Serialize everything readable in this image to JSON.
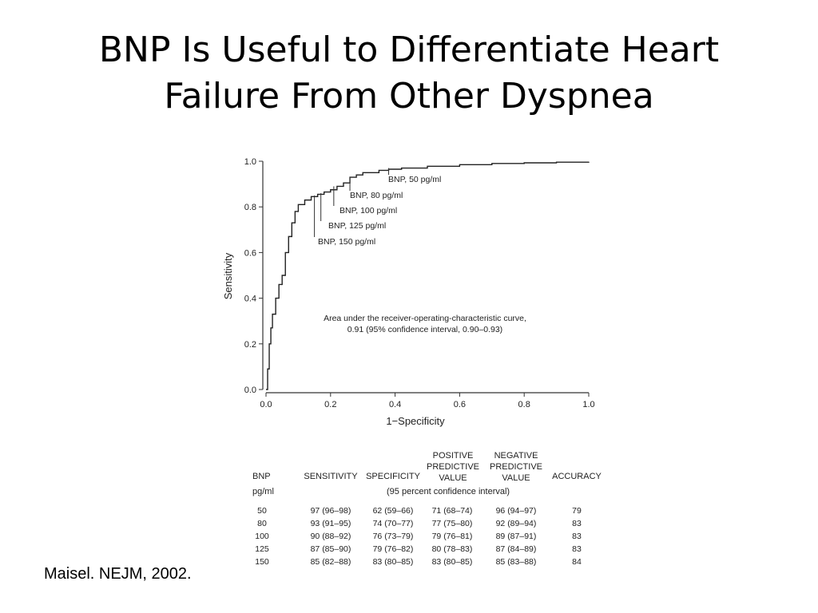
{
  "slide": {
    "title_line1": "BNP Is Useful to Differentiate Heart",
    "title_line2": "Failure From Other Dyspnea",
    "citation": "Maisel. NEJM, 2002."
  },
  "chart_data": {
    "type": "line",
    "title": "",
    "xlabel": "1−Specificity",
    "ylabel": "Sensitivity",
    "xlim": [
      0,
      1
    ],
    "ylim": [
      0,
      1
    ],
    "x_ticks": [
      "0.0",
      "0.2",
      "0.4",
      "0.6",
      "0.8",
      "1.0"
    ],
    "y_ticks": [
      "0.0",
      "0.2",
      "0.4",
      "0.6",
      "0.8",
      "1.0"
    ],
    "grid": false,
    "series": [
      {
        "x": [
          0.0,
          0.005,
          0.01,
          0.015,
          0.02,
          0.03,
          0.04,
          0.05,
          0.06,
          0.07,
          0.08,
          0.09,
          0.1,
          0.12,
          0.14,
          0.16,
          0.18,
          0.2,
          0.22,
          0.24,
          0.26,
          0.28,
          0.3,
          0.35,
          0.38,
          0.42,
          0.5,
          0.6,
          0.7,
          0.8,
          0.9,
          1.0
        ],
        "y": [
          0.0,
          0.09,
          0.2,
          0.27,
          0.33,
          0.4,
          0.46,
          0.5,
          0.6,
          0.67,
          0.73,
          0.78,
          0.81,
          0.83,
          0.845,
          0.855,
          0.865,
          0.875,
          0.89,
          0.905,
          0.93,
          0.94,
          0.95,
          0.96,
          0.965,
          0.97,
          0.978,
          0.985,
          0.99,
          0.993,
          0.996,
          0.998
        ]
      }
    ],
    "annotations": [
      {
        "label": "BNP, 50 pg/ml",
        "x": 0.38,
        "y": 0.97
      },
      {
        "label": "BNP, 80 pg/ml",
        "x": 0.26,
        "y": 0.93
      },
      {
        "label": "BNP, 100 pg/ml",
        "x": 0.21,
        "y": 0.89
      },
      {
        "label": "BNP, 125 pg/ml",
        "x": 0.17,
        "y": 0.86
      },
      {
        "label": "BNP, 150 pg/ml",
        "x": 0.15,
        "y": 0.85
      }
    ],
    "auc_text_line1": "Area under the receiver-operating-characteristic curve,",
    "auc_text_line2": "0.91 (95% confidence interval, 0.90–0.93)"
  },
  "table": {
    "headers": {
      "bnp": "BNP",
      "units": "pg/ml",
      "sensitivity": "SENSITIVITY",
      "specificity": "SPECIFICITY",
      "ppv_line1": "POSITIVE",
      "ppv_line2": "PREDICTIVE",
      "ppv_line3": "VALUE",
      "npv_line1": "NEGATIVE",
      "npv_line2": "PREDICTIVE",
      "npv_line3": "VALUE",
      "accuracy": "ACCURACY",
      "ci_note": "(95 percent confidence interval)"
    },
    "rows": [
      {
        "bnp": "50",
        "sensitivity": "97 (96–98)",
        "specificity": "62 (59–66)",
        "ppv": "71 (68–74)",
        "npv": "96 (94–97)",
        "accuracy": "79"
      },
      {
        "bnp": "80",
        "sensitivity": "93 (91–95)",
        "specificity": "74 (70–77)",
        "ppv": "77 (75–80)",
        "npv": "92 (89–94)",
        "accuracy": "83"
      },
      {
        "bnp": "100",
        "sensitivity": "90 (88–92)",
        "specificity": "76 (73–79)",
        "ppv": "79 (76–81)",
        "npv": "89 (87–91)",
        "accuracy": "83"
      },
      {
        "bnp": "125",
        "sensitivity": "87 (85–90)",
        "specificity": "79 (76–82)",
        "ppv": "80 (78–83)",
        "npv": "87 (84–89)",
        "accuracy": "83"
      },
      {
        "bnp": "150",
        "sensitivity": "85 (82–88)",
        "specificity": "83 (80–85)",
        "ppv": "83 (80–85)",
        "npv": "85 (83–88)",
        "accuracy": "84"
      }
    ]
  }
}
